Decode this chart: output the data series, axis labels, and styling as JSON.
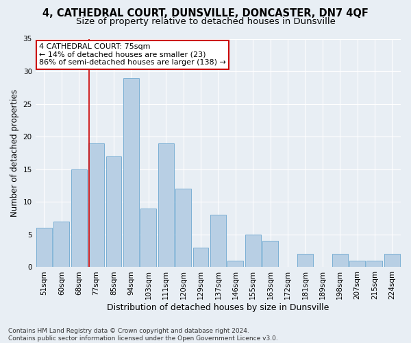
{
  "title": "4, CATHEDRAL COURT, DUNSVILLE, DONCASTER, DN7 4QF",
  "subtitle": "Size of property relative to detached houses in Dunsville",
  "xlabel": "Distribution of detached houses by size in Dunsville",
  "ylabel": "Number of detached properties",
  "bar_labels": [
    "51sqm",
    "60sqm",
    "68sqm",
    "77sqm",
    "85sqm",
    "94sqm",
    "103sqm",
    "111sqm",
    "120sqm",
    "129sqm",
    "137sqm",
    "146sqm",
    "155sqm",
    "163sqm",
    "172sqm",
    "181sqm",
    "189sqm",
    "198sqm",
    "207sqm",
    "215sqm",
    "224sqm"
  ],
  "bar_values": [
    6,
    7,
    15,
    19,
    17,
    29,
    9,
    19,
    12,
    3,
    8,
    1,
    5,
    4,
    0,
    2,
    0,
    2,
    1,
    1,
    2
  ],
  "bar_color": "#b8cfe4",
  "bar_edge_color": "#7bafd4",
  "vline_color": "#cc0000",
  "annotation_title": "4 CATHEDRAL COURT: 75sqm",
  "annotation_line1": "← 14% of detached houses are smaller (23)",
  "annotation_line2": "86% of semi-detached houses are larger (138) →",
  "annotation_box_facecolor": "#ffffff",
  "annotation_box_edgecolor": "#cc0000",
  "ylim": [
    0,
    35
  ],
  "yticks": [
    0,
    5,
    10,
    15,
    20,
    25,
    30,
    35
  ],
  "footer_line1": "Contains HM Land Registry data © Crown copyright and database right 2024.",
  "footer_line2": "Contains public sector information licensed under the Open Government Licence v3.0.",
  "background_color": "#e8eef4",
  "axes_background": "#e8eef4",
  "grid_color": "#ffffff",
  "title_fontsize": 10.5,
  "subtitle_fontsize": 9.5,
  "tick_fontsize": 7.5,
  "ylabel_fontsize": 8.5,
  "xlabel_fontsize": 9,
  "annotation_fontsize": 8,
  "footer_fontsize": 6.5
}
